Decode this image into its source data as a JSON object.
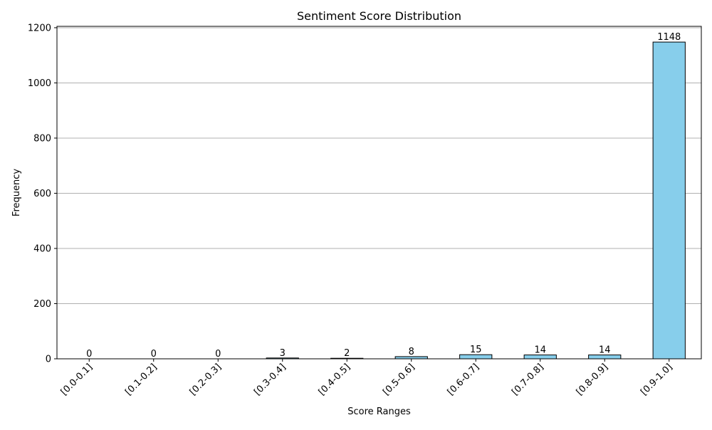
{
  "chart_data": {
    "type": "bar",
    "title": "Sentiment Score Distribution",
    "xlabel": "Score Ranges",
    "ylabel": "Frequency",
    "categories": [
      "[0.0-0.1]",
      "[0.1-0.2]",
      "[0.2-0.3]",
      "[0.3-0.4]",
      "[0.4-0.5]",
      "[0.5-0.6]",
      "[0.6-0.7]",
      "[0.7-0.8]",
      "[0.8-0.9]",
      "[0.9-1.0]"
    ],
    "values": [
      0,
      0,
      0,
      3,
      2,
      8,
      15,
      14,
      14,
      1148
    ],
    "ylim": [
      0,
      1205
    ],
    "yticks": [
      0,
      200,
      400,
      600,
      800,
      1000,
      1200
    ],
    "grid": "horizontal",
    "bar_color": "#87ceeb",
    "bar_edge_color": "#000000",
    "grid_color": "#b0b0b0"
  }
}
